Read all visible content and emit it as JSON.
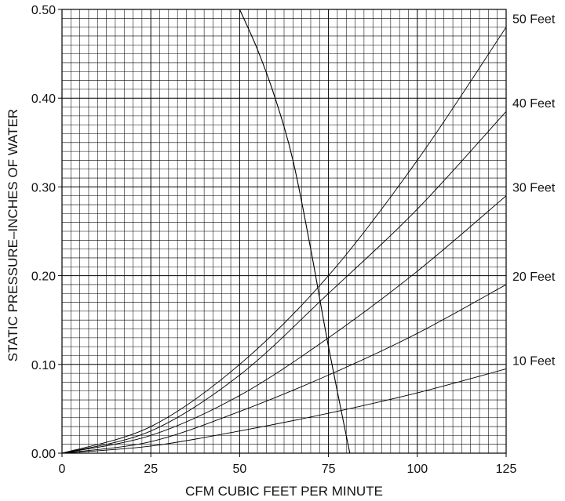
{
  "chart_data": {
    "type": "line",
    "title": "",
    "xlabel": "CFM CUBIC FEET PER MINUTE",
    "ylabel": "STATIC PRESSURE–INCHES OF WATER",
    "xlim": [
      0,
      125
    ],
    "ylim": [
      0,
      0.5
    ],
    "x_ticks": [
      0,
      25,
      50,
      75,
      100,
      125
    ],
    "x_tick_labels": [
      "0",
      "25",
      "50",
      "75",
      "100",
      "125"
    ],
    "y_ticks": [
      0,
      0.1,
      0.2,
      0.3,
      0.4,
      0.5
    ],
    "y_tick_labels": [
      "0.00",
      "0.10",
      "0.20",
      "0.30",
      "0.40",
      "0.50"
    ],
    "grid": true,
    "series": [
      {
        "name": "10 Feet",
        "x": [
          0,
          25,
          50,
          75,
          100,
          125
        ],
        "y": [
          0,
          0.008,
          0.025,
          0.045,
          0.068,
          0.095
        ]
      },
      {
        "name": "20 Feet",
        "x": [
          0,
          25,
          50,
          75,
          100,
          125
        ],
        "y": [
          0,
          0.013,
          0.047,
          0.088,
          0.135,
          0.19
        ]
      },
      {
        "name": "30 Feet",
        "x": [
          0,
          25,
          50,
          75,
          100,
          125
        ],
        "y": [
          0,
          0.02,
          0.065,
          0.13,
          0.205,
          0.29
        ]
      },
      {
        "name": "40 Feet",
        "x": [
          0,
          25,
          50,
          75,
          100,
          125
        ],
        "y": [
          0,
          0.025,
          0.088,
          0.18,
          0.275,
          0.385
        ]
      },
      {
        "name": "50 Feet",
        "x": [
          0,
          25,
          50,
          75,
          100,
          125
        ],
        "y": [
          0,
          0.03,
          0.1,
          0.2,
          0.33,
          0.48
        ]
      },
      {
        "name": "",
        "x": [
          50,
          55,
          60,
          65,
          70,
          75,
          81
        ],
        "y": [
          0.5,
          0.455,
          0.4,
          0.33,
          0.23,
          0.12,
          0
        ]
      }
    ]
  }
}
